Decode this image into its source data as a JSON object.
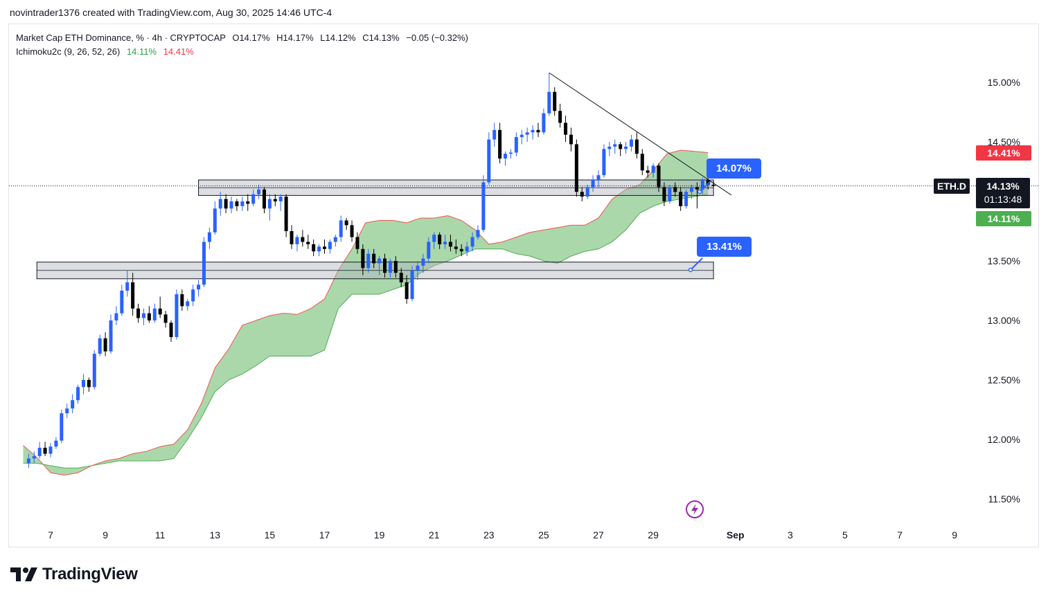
{
  "header": {
    "author_line": "novintrader1376 created with TradingView.com, Aug 30, 2025 14:46 UTC-4"
  },
  "legend": {
    "title": "Market Cap ETH Dominance, % · 4h · CRYPTOCAP",
    "open": "O14.17%",
    "high": "H14.17%",
    "low": "L14.12%",
    "close": "C14.13%",
    "change": "−0.05 (−0.32%)",
    "indicator": "Ichimoku2c (9, 26, 52, 26)",
    "ind_val1": "14.11%",
    "ind_val2": "14.41%"
  },
  "price_axis": {
    "ticks": [
      "15.00%",
      "14.50%",
      "13.50%",
      "13.00%",
      "12.50%",
      "12.00%",
      "11.50%"
    ],
    "tick_values": [
      15.0,
      14.5,
      13.5,
      13.0,
      12.5,
      12.0,
      11.5
    ],
    "symbol_label": "ETH.D",
    "current_price": "14.13%",
    "countdown": "01:13:48",
    "span_b_label": "14.41%",
    "span_a_label": "14.11%"
  },
  "time_axis": {
    "labels": [
      "7",
      "9",
      "11",
      "13",
      "15",
      "17",
      "19",
      "21",
      "23",
      "25",
      "27",
      "29",
      "Sep",
      "3",
      "5",
      "7",
      "9"
    ]
  },
  "callouts": [
    {
      "text": "14.07%",
      "value": 14.07
    },
    {
      "text": "13.41%",
      "value": 13.41
    }
  ],
  "brand": {
    "name": "TradingView"
  },
  "colors": {
    "up": "#2962ff",
    "down": "#000000",
    "cloud": "#a5d6a7",
    "span_a": "#4caf50",
    "span_b": "#ef5350",
    "red_badge": "#f23645",
    "green_badge": "#4caf50",
    "callout": "#2962ff"
  },
  "chart_data": {
    "type": "candlestick",
    "title": "Market Cap ETH Dominance, % · 4h · CRYPTOCAP",
    "x_range_days": [
      6.2,
      10.0
    ],
    "y_range": [
      11.3,
      15.35
    ],
    "x_unit": "day of Aug 2025 (Sep 1 = 32)",
    "ohlc": [
      [
        6.2,
        11.8,
        11.88,
        11.76,
        11.84
      ],
      [
        6.4,
        11.84,
        11.9,
        11.8,
        11.86
      ],
      [
        6.6,
        11.86,
        11.98,
        11.84,
        11.93
      ],
      [
        6.8,
        11.93,
        11.98,
        11.86,
        11.88
      ],
      [
        7.0,
        11.88,
        11.97,
        11.85,
        11.94
      ],
      [
        7.2,
        11.94,
        12.02,
        11.92,
        11.99
      ],
      [
        7.4,
        11.99,
        12.25,
        11.97,
        12.22
      ],
      [
        7.6,
        12.22,
        12.3,
        12.18,
        12.26
      ],
      [
        7.8,
        12.26,
        12.38,
        12.22,
        12.33
      ],
      [
        8.0,
        12.33,
        12.46,
        12.3,
        12.44
      ],
      [
        8.2,
        12.44,
        12.55,
        12.38,
        12.5
      ],
      [
        8.4,
        12.5,
        12.52,
        12.4,
        12.44
      ],
      [
        8.6,
        12.44,
        12.75,
        12.42,
        12.72
      ],
      [
        8.8,
        12.72,
        12.88,
        12.7,
        12.85
      ],
      [
        9.0,
        12.85,
        12.9,
        12.7,
        12.74
      ],
      [
        9.2,
        12.74,
        13.05,
        12.72,
        13.0
      ],
      [
        9.4,
        13.0,
        13.12,
        12.96,
        13.06
      ],
      [
        9.6,
        13.06,
        13.3,
        13.04,
        13.25
      ],
      [
        9.8,
        13.25,
        13.42,
        13.2,
        13.32
      ],
      [
        10.0,
        13.32,
        13.4,
        13.04,
        13.1
      ],
      [
        10.2,
        13.1,
        13.14,
        12.98,
        13.02
      ],
      [
        10.4,
        13.02,
        13.1,
        12.96,
        13.06
      ],
      [
        10.6,
        13.06,
        13.12,
        12.98,
        13.0
      ],
      [
        10.8,
        13.0,
        13.14,
        12.98,
        13.1
      ],
      [
        11.0,
        13.1,
        13.2,
        13.02,
        13.05
      ],
      [
        11.2,
        13.05,
        13.08,
        12.94,
        12.98
      ],
      [
        11.4,
        12.98,
        13.0,
        12.82,
        12.86
      ],
      [
        11.6,
        12.86,
        13.26,
        12.84,
        13.22
      ],
      [
        11.8,
        13.22,
        13.26,
        13.08,
        13.12
      ],
      [
        12.0,
        13.12,
        13.18,
        13.08,
        13.16
      ],
      [
        12.2,
        13.16,
        13.3,
        13.12,
        13.26
      ],
      [
        12.4,
        13.26,
        13.34,
        13.2,
        13.3
      ],
      [
        12.6,
        13.3,
        13.7,
        13.28,
        13.66
      ],
      [
        12.8,
        13.66,
        13.78,
        13.6,
        13.74
      ],
      [
        13.0,
        13.74,
        14.0,
        13.72,
        13.94
      ],
      [
        13.2,
        13.94,
        14.08,
        13.88,
        14.02
      ],
      [
        13.4,
        14.02,
        14.06,
        13.9,
        13.94
      ],
      [
        13.6,
        13.94,
        14.04,
        13.9,
        14.0
      ],
      [
        13.8,
        14.0,
        14.02,
        13.92,
        13.96
      ],
      [
        14.0,
        13.96,
        14.04,
        13.92,
        14.0
      ],
      [
        14.2,
        14.0,
        14.06,
        13.92,
        13.98
      ],
      [
        14.4,
        13.98,
        14.1,
        13.96,
        14.06
      ],
      [
        14.6,
        14.06,
        14.14,
        14.02,
        14.1
      ],
      [
        14.8,
        14.1,
        14.12,
        13.9,
        13.94
      ],
      [
        15.0,
        13.94,
        14.06,
        13.84,
        14.02
      ],
      [
        15.2,
        14.02,
        14.06,
        13.96,
        14.0
      ],
      [
        15.4,
        14.0,
        14.06,
        13.92,
        14.04
      ],
      [
        15.6,
        14.04,
        14.06,
        13.7,
        13.75
      ],
      [
        15.8,
        13.75,
        13.8,
        13.6,
        13.64
      ],
      [
        16.0,
        13.64,
        13.72,
        13.58,
        13.7
      ],
      [
        16.2,
        13.7,
        13.76,
        13.62,
        13.66
      ],
      [
        16.4,
        13.66,
        13.72,
        13.6,
        13.64
      ],
      [
        16.6,
        13.64,
        13.68,
        13.54,
        13.58
      ],
      [
        16.8,
        13.58,
        13.64,
        13.54,
        13.62
      ],
      [
        17.0,
        13.62,
        13.68,
        13.56,
        13.6
      ],
      [
        17.2,
        13.6,
        13.68,
        13.56,
        13.66
      ],
      [
        17.4,
        13.66,
        13.72,
        13.62,
        13.7
      ],
      [
        17.6,
        13.7,
        13.88,
        13.66,
        13.84
      ],
      [
        17.8,
        13.84,
        13.86,
        13.76,
        13.8
      ],
      [
        18.0,
        13.8,
        13.84,
        13.66,
        13.7
      ],
      [
        18.2,
        13.7,
        13.74,
        13.56,
        13.6
      ],
      [
        18.4,
        13.6,
        13.64,
        13.38,
        13.44
      ],
      [
        18.6,
        13.44,
        13.6,
        13.4,
        13.56
      ],
      [
        18.8,
        13.56,
        13.6,
        13.44,
        13.48
      ],
      [
        19.0,
        13.48,
        13.54,
        13.38,
        13.52
      ],
      [
        19.2,
        13.52,
        13.56,
        13.36,
        13.4
      ],
      [
        19.4,
        13.4,
        13.52,
        13.36,
        13.5
      ],
      [
        19.6,
        13.5,
        13.54,
        13.36,
        13.4
      ],
      [
        19.8,
        13.4,
        13.44,
        13.28,
        13.32
      ],
      [
        20.0,
        13.32,
        13.38,
        13.14,
        13.18
      ],
      [
        20.2,
        13.18,
        13.46,
        13.16,
        13.42
      ],
      [
        20.4,
        13.42,
        13.5,
        13.34,
        13.46
      ],
      [
        20.6,
        13.46,
        13.56,
        13.4,
        13.52
      ],
      [
        20.8,
        13.52,
        13.7,
        13.48,
        13.66
      ],
      [
        21.0,
        13.66,
        13.74,
        13.6,
        13.72
      ],
      [
        21.2,
        13.72,
        13.74,
        13.6,
        13.64
      ],
      [
        21.4,
        13.64,
        13.72,
        13.6,
        13.66
      ],
      [
        21.6,
        13.66,
        13.72,
        13.58,
        13.62
      ],
      [
        21.8,
        13.62,
        13.68,
        13.56,
        13.6
      ],
      [
        22.0,
        13.6,
        13.64,
        13.54,
        13.58
      ],
      [
        22.2,
        13.58,
        13.66,
        13.54,
        13.62
      ],
      [
        22.4,
        13.62,
        13.74,
        13.58,
        13.7
      ],
      [
        22.6,
        13.7,
        13.8,
        13.68,
        13.76
      ],
      [
        22.8,
        13.76,
        14.22,
        13.74,
        14.16
      ],
      [
        23.0,
        14.16,
        14.58,
        14.14,
        14.52
      ],
      [
        23.2,
        14.52,
        14.66,
        14.46,
        14.6
      ],
      [
        23.4,
        14.6,
        14.66,
        14.32,
        14.36
      ],
      [
        23.6,
        14.36,
        14.42,
        14.3,
        14.4
      ],
      [
        23.8,
        14.4,
        14.44,
        14.36,
        14.41
      ],
      [
        24.0,
        14.41,
        14.58,
        14.38,
        14.54
      ],
      [
        24.2,
        14.54,
        14.6,
        14.48,
        14.56
      ],
      [
        24.4,
        14.56,
        14.62,
        14.5,
        14.58
      ],
      [
        24.6,
        14.58,
        14.64,
        14.52,
        14.6
      ],
      [
        24.8,
        14.6,
        14.66,
        14.54,
        14.58
      ],
      [
        25.0,
        14.58,
        14.78,
        14.56,
        14.74
      ],
      [
        25.2,
        14.74,
        15.08,
        14.72,
        14.92
      ],
      [
        25.4,
        14.92,
        14.96,
        14.72,
        14.76
      ],
      [
        25.6,
        14.76,
        14.82,
        14.62,
        14.66
      ],
      [
        25.8,
        14.66,
        14.72,
        14.5,
        14.56
      ],
      [
        26.0,
        14.56,
        14.62,
        14.42,
        14.48
      ],
      [
        26.2,
        14.48,
        14.52,
        14.04,
        14.08
      ],
      [
        26.4,
        14.08,
        14.12,
        14.0,
        14.04
      ],
      [
        26.6,
        14.04,
        14.14,
        14.02,
        14.12
      ],
      [
        26.8,
        14.12,
        14.22,
        14.08,
        14.18
      ],
      [
        27.0,
        14.18,
        14.26,
        14.12,
        14.22
      ],
      [
        27.2,
        14.22,
        14.48,
        14.2,
        14.44
      ],
      [
        27.4,
        14.44,
        14.5,
        14.38,
        14.46
      ],
      [
        27.6,
        14.46,
        14.52,
        14.4,
        14.48
      ],
      [
        27.8,
        14.48,
        14.5,
        14.38,
        14.44
      ],
      [
        28.0,
        14.44,
        14.5,
        14.4,
        14.46
      ],
      [
        28.2,
        14.46,
        14.56,
        14.42,
        14.52
      ],
      [
        28.4,
        14.52,
        14.58,
        14.36,
        14.4
      ],
      [
        28.6,
        14.4,
        14.44,
        14.22,
        14.26
      ],
      [
        28.8,
        14.26,
        14.3,
        14.2,
        14.24
      ],
      [
        29.0,
        14.24,
        14.32,
        14.2,
        14.3
      ],
      [
        29.2,
        14.3,
        14.32,
        14.08,
        14.12
      ],
      [
        29.4,
        14.12,
        14.16,
        13.96,
        14.0
      ],
      [
        29.6,
        14.0,
        14.14,
        13.98,
        14.12
      ],
      [
        29.8,
        14.12,
        14.16,
        14.04,
        14.08
      ],
      [
        30.0,
        14.08,
        14.12,
        13.92,
        13.96
      ],
      [
        30.2,
        13.96,
        14.1,
        13.94,
        14.08
      ],
      [
        30.4,
        14.08,
        14.14,
        14.02,
        14.12
      ],
      [
        30.6,
        14.12,
        14.16,
        13.94,
        14.1
      ],
      [
        30.8,
        14.1,
        14.2,
        14.06,
        14.18
      ],
      [
        31.0,
        14.18,
        14.2,
        14.1,
        14.14
      ],
      [
        31.2,
        14.14,
        14.17,
        14.12,
        14.13
      ]
    ],
    "cloud": {
      "x": [
        6.0,
        6.5,
        7.0,
        7.5,
        8.0,
        8.5,
        9.0,
        9.5,
        10.0,
        10.5,
        11.0,
        11.5,
        12.0,
        12.5,
        13.0,
        13.5,
        14.0,
        14.5,
        15.0,
        15.5,
        16.0,
        16.5,
        17.0,
        17.5,
        18.0,
        18.5,
        19.0,
        19.5,
        20.0,
        20.5,
        21.0,
        21.5,
        22.0,
        22.5,
        23.0,
        23.5,
        24.0,
        24.5,
        25.0,
        25.5,
        26.0,
        26.5,
        27.0,
        27.5,
        28.0,
        28.5,
        29.0,
        29.5,
        30.0,
        30.5,
        31.0
      ],
      "span_a": [
        11.8,
        11.8,
        11.78,
        11.76,
        11.76,
        11.78,
        11.8,
        11.82,
        11.82,
        11.82,
        11.82,
        11.84,
        12.0,
        12.18,
        12.4,
        12.5,
        12.55,
        12.62,
        12.7,
        12.7,
        12.7,
        12.7,
        12.75,
        13.1,
        13.22,
        13.22,
        13.22,
        13.26,
        13.3,
        13.4,
        13.46,
        13.5,
        13.55,
        13.6,
        13.6,
        13.6,
        13.56,
        13.54,
        13.5,
        13.48,
        13.54,
        13.58,
        13.6,
        13.66,
        13.76,
        13.9,
        13.96,
        14.0,
        14.02,
        14.04,
        14.06
      ],
      "span_b": [
        11.95,
        11.85,
        11.72,
        11.7,
        11.72,
        11.78,
        11.82,
        11.84,
        11.88,
        11.9,
        11.94,
        11.96,
        12.08,
        12.3,
        12.6,
        12.76,
        12.96,
        13.0,
        13.04,
        13.06,
        13.05,
        13.1,
        13.18,
        13.42,
        13.6,
        13.82,
        13.84,
        13.84,
        13.82,
        13.86,
        13.86,
        13.88,
        13.84,
        13.76,
        13.64,
        13.66,
        13.7,
        13.74,
        13.76,
        13.78,
        13.8,
        13.8,
        13.86,
        14.02,
        14.1,
        14.14,
        14.26,
        14.4,
        14.43,
        14.42,
        14.41
      ]
    },
    "trendline": {
      "from": [
        25.2,
        15.08
      ],
      "to": [
        31.6,
        14.07
      ]
    },
    "zones": [
      {
        "x_from": 12.4,
        "x_to": 31.2,
        "y_from": 14.05,
        "y_to": 14.18
      },
      {
        "x_from": 6.5,
        "x_to": 31.2,
        "y_from": 13.35,
        "y_to": 13.49
      }
    ],
    "current_price_value": 14.13,
    "span_a_value": 14.11,
    "span_b_value": 14.41
  }
}
